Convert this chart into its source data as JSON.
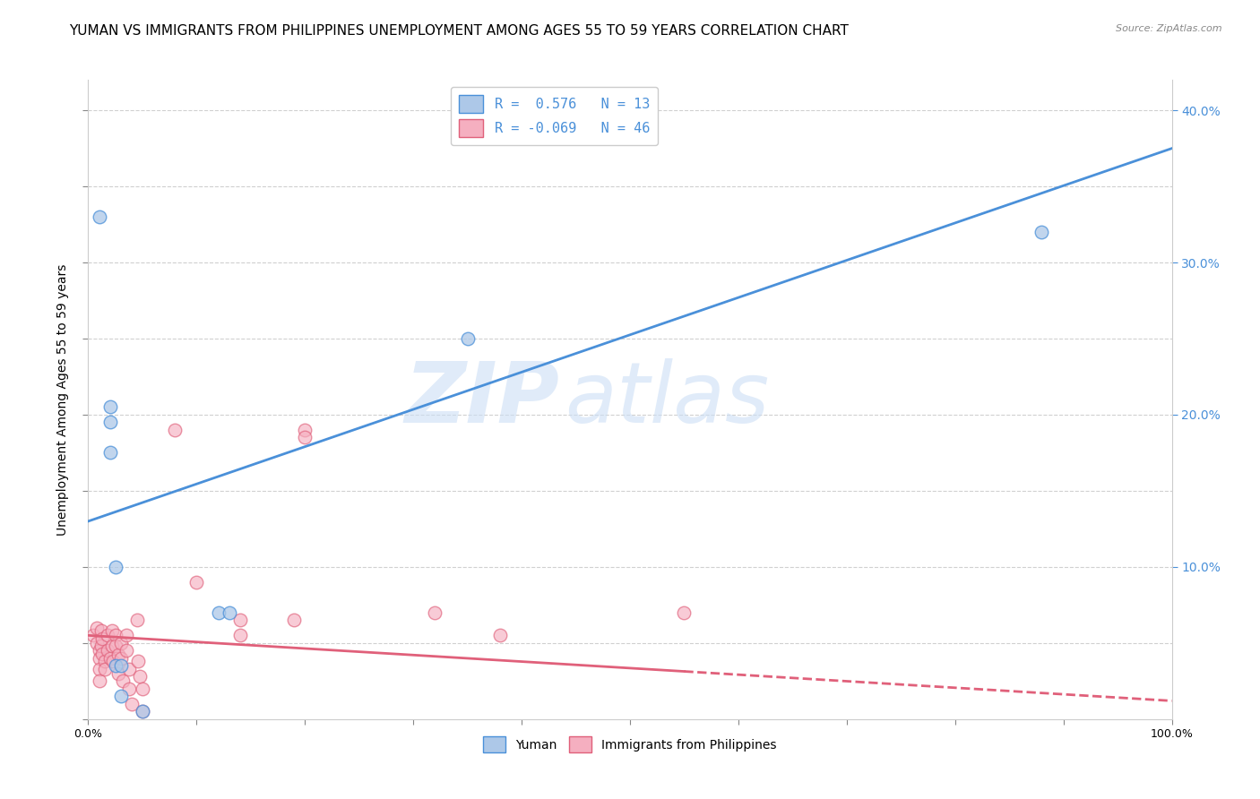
{
  "title": "YUMAN VS IMMIGRANTS FROM PHILIPPINES UNEMPLOYMENT AMONG AGES 55 TO 59 YEARS CORRELATION CHART",
  "source": "Source: ZipAtlas.com",
  "ylabel": "Unemployment Among Ages 55 to 59 years",
  "xlabel": "",
  "xlim": [
    0.0,
    1.0
  ],
  "ylim": [
    0.0,
    0.42
  ],
  "xticks": [
    0.0,
    0.1,
    0.2,
    0.3,
    0.4,
    0.5,
    0.6,
    0.7,
    0.8,
    0.9,
    1.0
  ],
  "xticklabels_show": {
    "0.0": "0.0%",
    "1.0": "100.0%"
  },
  "yticks_left": [
    0.0,
    0.05,
    0.1,
    0.15,
    0.2,
    0.25,
    0.3,
    0.35,
    0.4
  ],
  "yticks_right": [
    0.1,
    0.2,
    0.3,
    0.4
  ],
  "yticklabels_right": [
    "10.0%",
    "20.0%",
    "30.0%",
    "40.0%"
  ],
  "R_blue": 0.576,
  "N_blue": 13,
  "R_pink": -0.069,
  "N_pink": 46,
  "blue_color": "#adc8e8",
  "pink_color": "#f5afc0",
  "blue_line_color": "#4a90d9",
  "pink_line_color": "#e0607a",
  "blue_scatter": [
    [
      0.01,
      0.33
    ],
    [
      0.02,
      0.205
    ],
    [
      0.02,
      0.195
    ],
    [
      0.02,
      0.175
    ],
    [
      0.025,
      0.1
    ],
    [
      0.025,
      0.035
    ],
    [
      0.03,
      0.035
    ],
    [
      0.03,
      0.015
    ],
    [
      0.05,
      0.005
    ],
    [
      0.12,
      0.07
    ],
    [
      0.13,
      0.07
    ],
    [
      0.35,
      0.25
    ],
    [
      0.88,
      0.32
    ]
  ],
  "pink_scatter": [
    [
      0.005,
      0.055
    ],
    [
      0.008,
      0.06
    ],
    [
      0.008,
      0.05
    ],
    [
      0.01,
      0.045
    ],
    [
      0.01,
      0.04
    ],
    [
      0.01,
      0.033
    ],
    [
      0.01,
      0.025
    ],
    [
      0.012,
      0.058
    ],
    [
      0.012,
      0.048
    ],
    [
      0.013,
      0.053
    ],
    [
      0.013,
      0.043
    ],
    [
      0.015,
      0.038
    ],
    [
      0.015,
      0.033
    ],
    [
      0.018,
      0.055
    ],
    [
      0.018,
      0.045
    ],
    [
      0.02,
      0.04
    ],
    [
      0.022,
      0.058
    ],
    [
      0.022,
      0.048
    ],
    [
      0.023,
      0.038
    ],
    [
      0.025,
      0.055
    ],
    [
      0.025,
      0.048
    ],
    [
      0.028,
      0.042
    ],
    [
      0.028,
      0.03
    ],
    [
      0.03,
      0.05
    ],
    [
      0.03,
      0.04
    ],
    [
      0.032,
      0.025
    ],
    [
      0.035,
      0.055
    ],
    [
      0.035,
      0.045
    ],
    [
      0.038,
      0.033
    ],
    [
      0.038,
      0.02
    ],
    [
      0.04,
      0.01
    ],
    [
      0.045,
      0.065
    ],
    [
      0.046,
      0.038
    ],
    [
      0.048,
      0.028
    ],
    [
      0.05,
      0.02
    ],
    [
      0.05,
      0.005
    ],
    [
      0.08,
      0.19
    ],
    [
      0.1,
      0.09
    ],
    [
      0.14,
      0.065
    ],
    [
      0.14,
      0.055
    ],
    [
      0.19,
      0.065
    ],
    [
      0.2,
      0.19
    ],
    [
      0.32,
      0.07
    ],
    [
      0.38,
      0.055
    ],
    [
      0.55,
      0.07
    ],
    [
      0.2,
      0.185
    ]
  ],
  "blue_line_y_start": 0.13,
  "blue_line_y_end": 0.375,
  "pink_line_y_start": 0.055,
  "pink_line_y_end": 0.012,
  "pink_line_solid_end": 0.55,
  "watermark_zip": "ZIP",
  "watermark_atlas": "atlas",
  "marker_size": 110,
  "title_fontsize": 11,
  "axis_fontsize": 9,
  "tick_fontsize": 9,
  "legend_fontsize": 11
}
